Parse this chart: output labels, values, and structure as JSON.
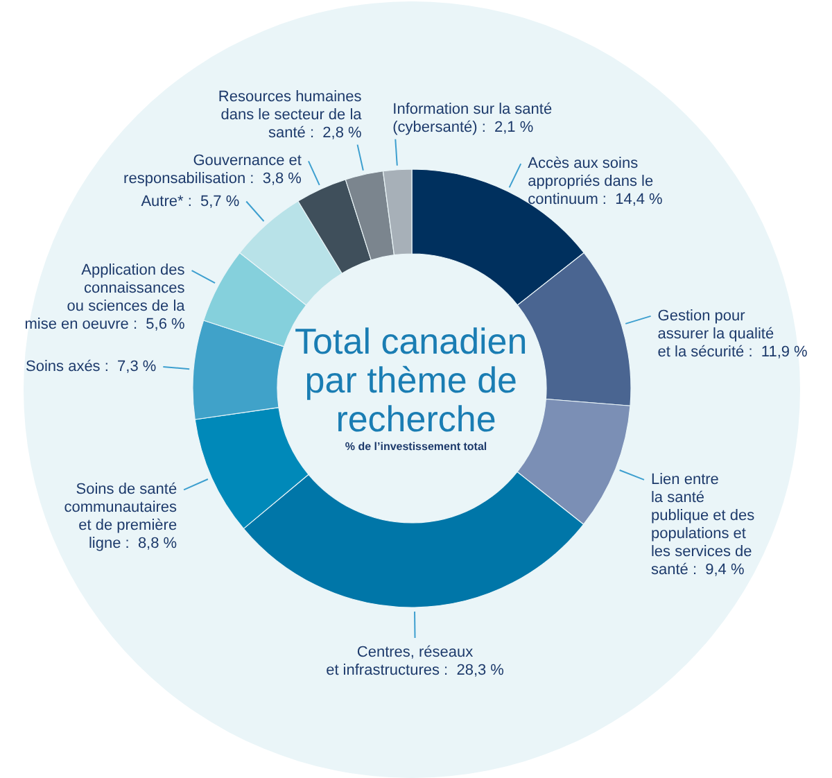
{
  "chart_data": {
    "type": "donut",
    "title": "Total canadien par thème de recherche",
    "subtitle": "% de l’investissement total",
    "categories": [
      "Accès aux soins\nappropriés dans le\ncontinuum",
      "Gestion pour\nassurer la qualité\net la sécurité",
      "Lien entre\nla santé\npublique et des\npopulations et\nles services de\nsanté",
      "Centres, réseaux\net infrastructures",
      "Soins de santé\ncommunautaires\net de première\nligne",
      "Soins axés",
      "Application des\nconnaissances\nou sciences de la\nmise en oeuvre",
      "Autre*",
      "Gouvernance et\nresponsabilisation",
      "Resources humaines\ndans le secteur de la\nsanté",
      "Information sur la santé\n(cybersanté)"
    ],
    "values": [
      14.4,
      11.9,
      9.4,
      28.3,
      8.8,
      7.3,
      5.6,
      5.7,
      3.8,
      2.8,
      2.1
    ],
    "value_labels": [
      "14,4 %",
      "11,9 %",
      "9,4 %",
      "28,3 %",
      "8,8 %",
      "7,3 %",
      "5,6 %",
      "5,7 %",
      "3,8 %",
      "2,8 %",
      "2,1 %"
    ],
    "colors": [
      "#00305e",
      "#4a6591",
      "#7b8fb5",
      "#0076a8",
      "#0089b9",
      "#40a2c9",
      "#85d0dc",
      "#b8e2e8",
      "#3f4f5b",
      "#7b858e",
      "#a7b0b8"
    ]
  }
}
